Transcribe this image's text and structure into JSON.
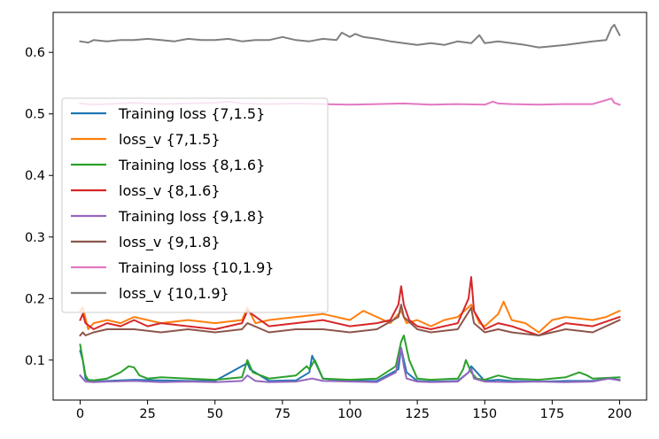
{
  "chart_data": {
    "type": "line",
    "title": "",
    "xlabel": "",
    "ylabel": "",
    "xlim": [
      -10,
      210
    ],
    "ylim": [
      0.035,
      0.665
    ],
    "xticks": [
      0,
      25,
      50,
      75,
      100,
      125,
      150,
      175,
      200
    ],
    "yticks": [
      0.1,
      0.2,
      0.3,
      0.4,
      0.5,
      0.6
    ],
    "grid": false,
    "legend": "center-left",
    "series": [
      {
        "name": "Training loss {7,1.5}",
        "color": "#1f77b4",
        "x": [
          0,
          1,
          2,
          3,
          5,
          10,
          20,
          30,
          40,
          50,
          62,
          63,
          70,
          80,
          85,
          86,
          90,
          100,
          110,
          118,
          119,
          120,
          121,
          125,
          130,
          140,
          144,
          145,
          150,
          155,
          160,
          170,
          180,
          190,
          196,
          200
        ],
        "y": [
          0.115,
          0.1,
          0.07,
          0.066,
          0.065,
          0.066,
          0.068,
          0.067,
          0.066,
          0.066,
          0.095,
          0.085,
          0.066,
          0.067,
          0.08,
          0.107,
          0.07,
          0.066,
          0.066,
          0.085,
          0.12,
          0.1,
          0.08,
          0.066,
          0.065,
          0.066,
          0.08,
          0.09,
          0.066,
          0.068,
          0.066,
          0.065,
          0.066,
          0.066,
          0.07,
          0.068
        ]
      },
      {
        "name": "loss_v {7,1.5}",
        "color": "#ff7f0e",
        "x": [
          0,
          1,
          3,
          5,
          10,
          15,
          20,
          25,
          30,
          40,
          50,
          60,
          62,
          65,
          70,
          80,
          90,
          100,
          105,
          110,
          115,
          119,
          121,
          125,
          130,
          135,
          140,
          145,
          148,
          150,
          155,
          157,
          160,
          165,
          170,
          175,
          180,
          190,
          195,
          200
        ],
        "y": [
          0.18,
          0.185,
          0.15,
          0.16,
          0.165,
          0.16,
          0.17,
          0.165,
          0.16,
          0.165,
          0.16,
          0.165,
          0.185,
          0.16,
          0.165,
          0.17,
          0.175,
          0.165,
          0.18,
          0.17,
          0.16,
          0.18,
          0.16,
          0.165,
          0.155,
          0.165,
          0.17,
          0.19,
          0.16,
          0.155,
          0.175,
          0.195,
          0.165,
          0.16,
          0.145,
          0.165,
          0.17,
          0.165,
          0.17,
          0.18
        ]
      },
      {
        "name": "Training loss {8,1.6}",
        "color": "#2ca02c",
        "x": [
          0,
          1,
          2,
          3,
          5,
          10,
          15,
          18,
          20,
          22,
          25,
          30,
          40,
          50,
          60,
          62,
          64,
          70,
          80,
          84,
          85,
          87,
          90,
          100,
          110,
          117,
          119,
          120,
          122,
          125,
          130,
          140,
          142,
          143,
          145,
          147,
          150,
          155,
          160,
          170,
          180,
          185,
          188,
          190,
          200
        ],
        "y": [
          0.125,
          0.1,
          0.075,
          0.068,
          0.067,
          0.07,
          0.08,
          0.09,
          0.088,
          0.075,
          0.07,
          0.072,
          0.07,
          0.068,
          0.072,
          0.1,
          0.08,
          0.07,
          0.075,
          0.09,
          0.085,
          0.1,
          0.07,
          0.068,
          0.07,
          0.09,
          0.13,
          0.14,
          0.1,
          0.07,
          0.068,
          0.07,
          0.085,
          0.1,
          0.08,
          0.07,
          0.068,
          0.075,
          0.07,
          0.068,
          0.072,
          0.08,
          0.075,
          0.07,
          0.072
        ]
      },
      {
        "name": "loss_v {8,1.6}",
        "color": "#d62728",
        "x": [
          0,
          1,
          2,
          5,
          10,
          15,
          20,
          25,
          30,
          40,
          50,
          60,
          62,
          70,
          80,
          90,
          100,
          110,
          115,
          118,
          119,
          120,
          122,
          125,
          130,
          140,
          144,
          145,
          146,
          150,
          155,
          160,
          170,
          175,
          180,
          190,
          200
        ],
        "y": [
          0.165,
          0.175,
          0.16,
          0.15,
          0.16,
          0.155,
          0.165,
          0.155,
          0.16,
          0.155,
          0.15,
          0.16,
          0.18,
          0.155,
          0.16,
          0.165,
          0.155,
          0.16,
          0.165,
          0.19,
          0.22,
          0.19,
          0.165,
          0.155,
          0.15,
          0.16,
          0.2,
          0.235,
          0.18,
          0.15,
          0.16,
          0.155,
          0.14,
          0.15,
          0.16,
          0.155,
          0.17
        ]
      },
      {
        "name": "Training loss {9,1.8}",
        "color": "#9467bd",
        "x": [
          0,
          1,
          2,
          5,
          10,
          20,
          30,
          40,
          50,
          60,
          62,
          65,
          70,
          80,
          86,
          90,
          100,
          110,
          117,
          118,
          119,
          120,
          121,
          125,
          130,
          140,
          144,
          145,
          146,
          150,
          160,
          170,
          180,
          190,
          196,
          200
        ],
        "y": [
          0.075,
          0.07,
          0.065,
          0.064,
          0.065,
          0.066,
          0.064,
          0.065,
          0.064,
          0.066,
          0.075,
          0.066,
          0.064,
          0.065,
          0.07,
          0.066,
          0.065,
          0.064,
          0.08,
          0.1,
          0.12,
          0.09,
          0.07,
          0.065,
          0.064,
          0.065,
          0.08,
          0.086,
          0.07,
          0.065,
          0.064,
          0.065,
          0.064,
          0.065,
          0.07,
          0.067
        ]
      },
      {
        "name": "loss_v {9,1.8}",
        "color": "#8c564b",
        "x": [
          0,
          1,
          2,
          5,
          10,
          20,
          30,
          40,
          50,
          60,
          62,
          70,
          80,
          90,
          100,
          110,
          118,
          119,
          120,
          125,
          130,
          140,
          145,
          146,
          150,
          155,
          160,
          170,
          175,
          180,
          190,
          200
        ],
        "y": [
          0.14,
          0.145,
          0.14,
          0.145,
          0.15,
          0.15,
          0.145,
          0.15,
          0.145,
          0.15,
          0.16,
          0.145,
          0.15,
          0.15,
          0.145,
          0.15,
          0.17,
          0.19,
          0.17,
          0.15,
          0.145,
          0.15,
          0.185,
          0.16,
          0.145,
          0.15,
          0.145,
          0.14,
          0.145,
          0.15,
          0.145,
          0.165
        ]
      },
      {
        "name": "Training loss {10,1.9}",
        "color": "#e377c2",
        "x": [
          0,
          5,
          10,
          20,
          30,
          40,
          50,
          55,
          60,
          70,
          80,
          90,
          100,
          110,
          120,
          130,
          140,
          150,
          153,
          155,
          160,
          170,
          180,
          190,
          197,
          198,
          200
        ],
        "y": [
          0.517,
          0.515,
          0.516,
          0.518,
          0.516,
          0.517,
          0.518,
          0.52,
          0.517,
          0.516,
          0.517,
          0.516,
          0.515,
          0.516,
          0.517,
          0.515,
          0.516,
          0.515,
          0.52,
          0.517,
          0.516,
          0.515,
          0.516,
          0.516,
          0.525,
          0.518,
          0.515
        ]
      },
      {
        "name": "loss_v {10,1.9}",
        "color": "#7f7f7f",
        "x": [
          0,
          3,
          5,
          10,
          15,
          20,
          25,
          30,
          35,
          40,
          45,
          50,
          55,
          60,
          65,
          70,
          75,
          80,
          85,
          90,
          95,
          97,
          100,
          102,
          105,
          110,
          115,
          120,
          125,
          130,
          135,
          140,
          145,
          148,
          150,
          155,
          160,
          165,
          170,
          175,
          180,
          185,
          190,
          195,
          197,
          198,
          200
        ],
        "y": [
          0.618,
          0.616,
          0.62,
          0.618,
          0.62,
          0.62,
          0.622,
          0.62,
          0.618,
          0.622,
          0.62,
          0.62,
          0.622,
          0.618,
          0.62,
          0.62,
          0.625,
          0.62,
          0.618,
          0.622,
          0.62,
          0.632,
          0.625,
          0.63,
          0.625,
          0.622,
          0.618,
          0.615,
          0.612,
          0.615,
          0.612,
          0.618,
          0.615,
          0.628,
          0.615,
          0.618,
          0.615,
          0.612,
          0.608,
          0.61,
          0.612,
          0.615,
          0.618,
          0.62,
          0.64,
          0.645,
          0.628
        ]
      }
    ]
  }
}
